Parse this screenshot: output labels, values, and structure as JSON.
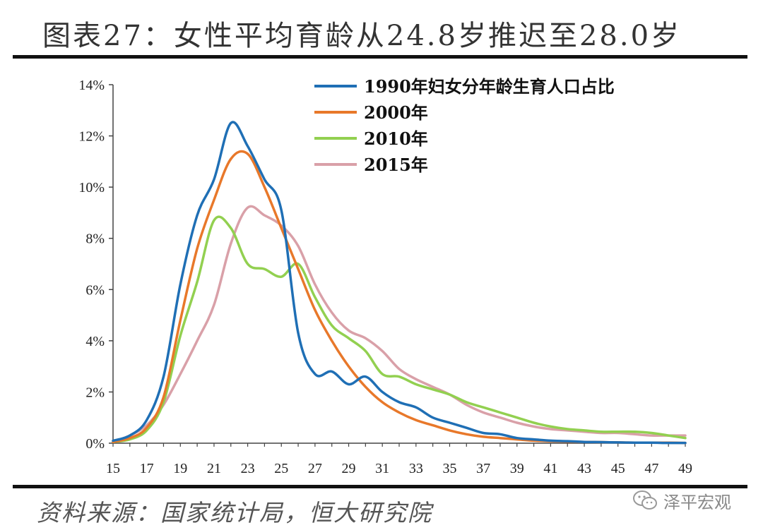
{
  "header": {
    "title": "图表27：女性平均育龄从24.8岁推迟至28.0岁"
  },
  "footer": {
    "source": "资料来源：国家统计局，恒大研究院"
  },
  "watermark": {
    "text": "泽平宏观",
    "icon": "wechat-icon"
  },
  "chart_data": {
    "type": "line",
    "title": "图表27：女性平均育龄从24.8岁推迟至28.0岁",
    "xlabel": "",
    "ylabel": "",
    "x": [
      15,
      16,
      17,
      18,
      19,
      20,
      21,
      22,
      23,
      24,
      25,
      26,
      27,
      28,
      29,
      30,
      31,
      32,
      33,
      34,
      35,
      36,
      37,
      38,
      39,
      40,
      41,
      42,
      43,
      44,
      45,
      46,
      47,
      48,
      49
    ],
    "x_ticks": [
      15,
      17,
      19,
      21,
      23,
      25,
      27,
      29,
      31,
      33,
      35,
      37,
      39,
      41,
      43,
      45,
      47,
      49
    ],
    "xlim": [
      15,
      49
    ],
    "ylim": [
      0,
      14
    ],
    "y_ticks": [
      "0%",
      "2%",
      "4%",
      "6%",
      "8%",
      "10%",
      "12%",
      "14%"
    ],
    "grid": false,
    "legend_position": "top-right",
    "series": [
      {
        "name": "1990年妇女分年龄生育人口占比",
        "color": "#1f6fb5",
        "values": [
          0.1,
          0.3,
          0.9,
          2.6,
          6.2,
          8.9,
          10.3,
          12.5,
          11.6,
          10.3,
          9.1,
          4.3,
          2.7,
          2.8,
          2.3,
          2.6,
          2.0,
          1.6,
          1.4,
          1.0,
          0.8,
          0.6,
          0.4,
          0.35,
          0.2,
          0.15,
          0.1,
          0.08,
          0.05,
          0.04,
          0.03,
          0.02,
          0.02,
          0.01,
          0.01
        ]
      },
      {
        "name": "2000年",
        "color": "#e8782a",
        "values": [
          0.05,
          0.2,
          0.6,
          1.8,
          4.8,
          7.6,
          9.5,
          11.1,
          11.3,
          10.0,
          8.4,
          6.8,
          5.2,
          4.0,
          3.0,
          2.2,
          1.6,
          1.2,
          0.9,
          0.7,
          0.5,
          0.35,
          0.25,
          0.2,
          0.15,
          0.1,
          0.08,
          0.06,
          0.05,
          0.04,
          0.03,
          0.02,
          0.02,
          0.02,
          0.01
        ]
      },
      {
        "name": "2010年",
        "color": "#92d050",
        "values": [
          0.05,
          0.15,
          0.5,
          1.6,
          4.2,
          6.3,
          8.7,
          8.4,
          7.0,
          6.8,
          6.5,
          7.0,
          5.7,
          4.6,
          4.1,
          3.6,
          2.7,
          2.6,
          2.3,
          2.1,
          1.9,
          1.6,
          1.4,
          1.2,
          1.0,
          0.8,
          0.65,
          0.55,
          0.5,
          0.45,
          0.45,
          0.45,
          0.4,
          0.3,
          0.2
        ]
      },
      {
        "name": "2015年",
        "color": "#d9a0a8",
        "values": [
          0.05,
          0.3,
          0.7,
          1.5,
          2.7,
          4.0,
          5.4,
          7.8,
          9.2,
          8.9,
          8.5,
          7.7,
          6.2,
          5.1,
          4.4,
          4.1,
          3.6,
          2.9,
          2.5,
          2.2,
          1.9,
          1.5,
          1.2,
          1.0,
          0.8,
          0.65,
          0.55,
          0.5,
          0.45,
          0.4,
          0.4,
          0.35,
          0.3,
          0.3,
          0.3
        ]
      }
    ]
  }
}
